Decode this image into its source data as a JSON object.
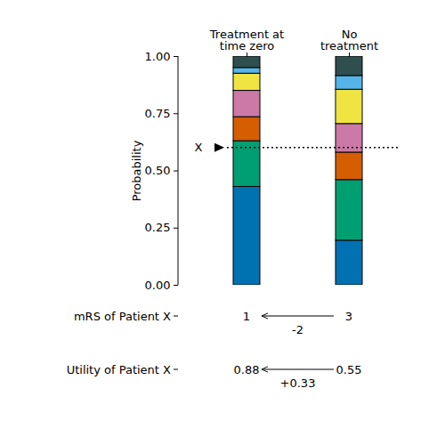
{
  "chart_data": {
    "type": "bar",
    "stacked": true,
    "categories": [
      "Treatment at\ntime zero",
      "No\ntreatment"
    ],
    "series": [
      {
        "color": "#0072B2",
        "values": [
          0.43,
          0.195
        ]
      },
      {
        "color": "#009E73",
        "values": [
          0.2,
          0.265
        ]
      },
      {
        "color": "#D55E00",
        "values": [
          0.105,
          0.12
        ]
      },
      {
        "color": "#CC79A7",
        "values": [
          0.115,
          0.125
        ]
      },
      {
        "color": "#F0E442",
        "values": [
          0.075,
          0.15
        ]
      },
      {
        "color": "#56B4E9",
        "values": [
          0.025,
          0.06
        ]
      },
      {
        "color": "#2F4F4F",
        "values": [
          0.05,
          0.085
        ]
      }
    ],
    "ylabel": "Probability",
    "ylim": [
      0,
      1
    ],
    "yticks": [
      {
        "value": 0,
        "label": "0.00"
      },
      {
        "value": 0.25,
        "label": "0.25"
      },
      {
        "value": 0.5,
        "label": "0.50"
      },
      {
        "value": 0.75,
        "label": "0.75"
      },
      {
        "value": 1,
        "label": "1.00"
      }
    ],
    "reference_line": {
      "value": 0.6,
      "label": "X",
      "line_style": "dotted"
    },
    "patient_rows": [
      {
        "label": "mRS of Patient X",
        "values": [
          1,
          3
        ],
        "change": -2
      },
      {
        "label": "Utility of Patient X",
        "values": [
          0.88,
          0.55
        ],
        "change": {
          "value": 0.33,
          "label": "+0.33"
        }
      }
    ]
  }
}
